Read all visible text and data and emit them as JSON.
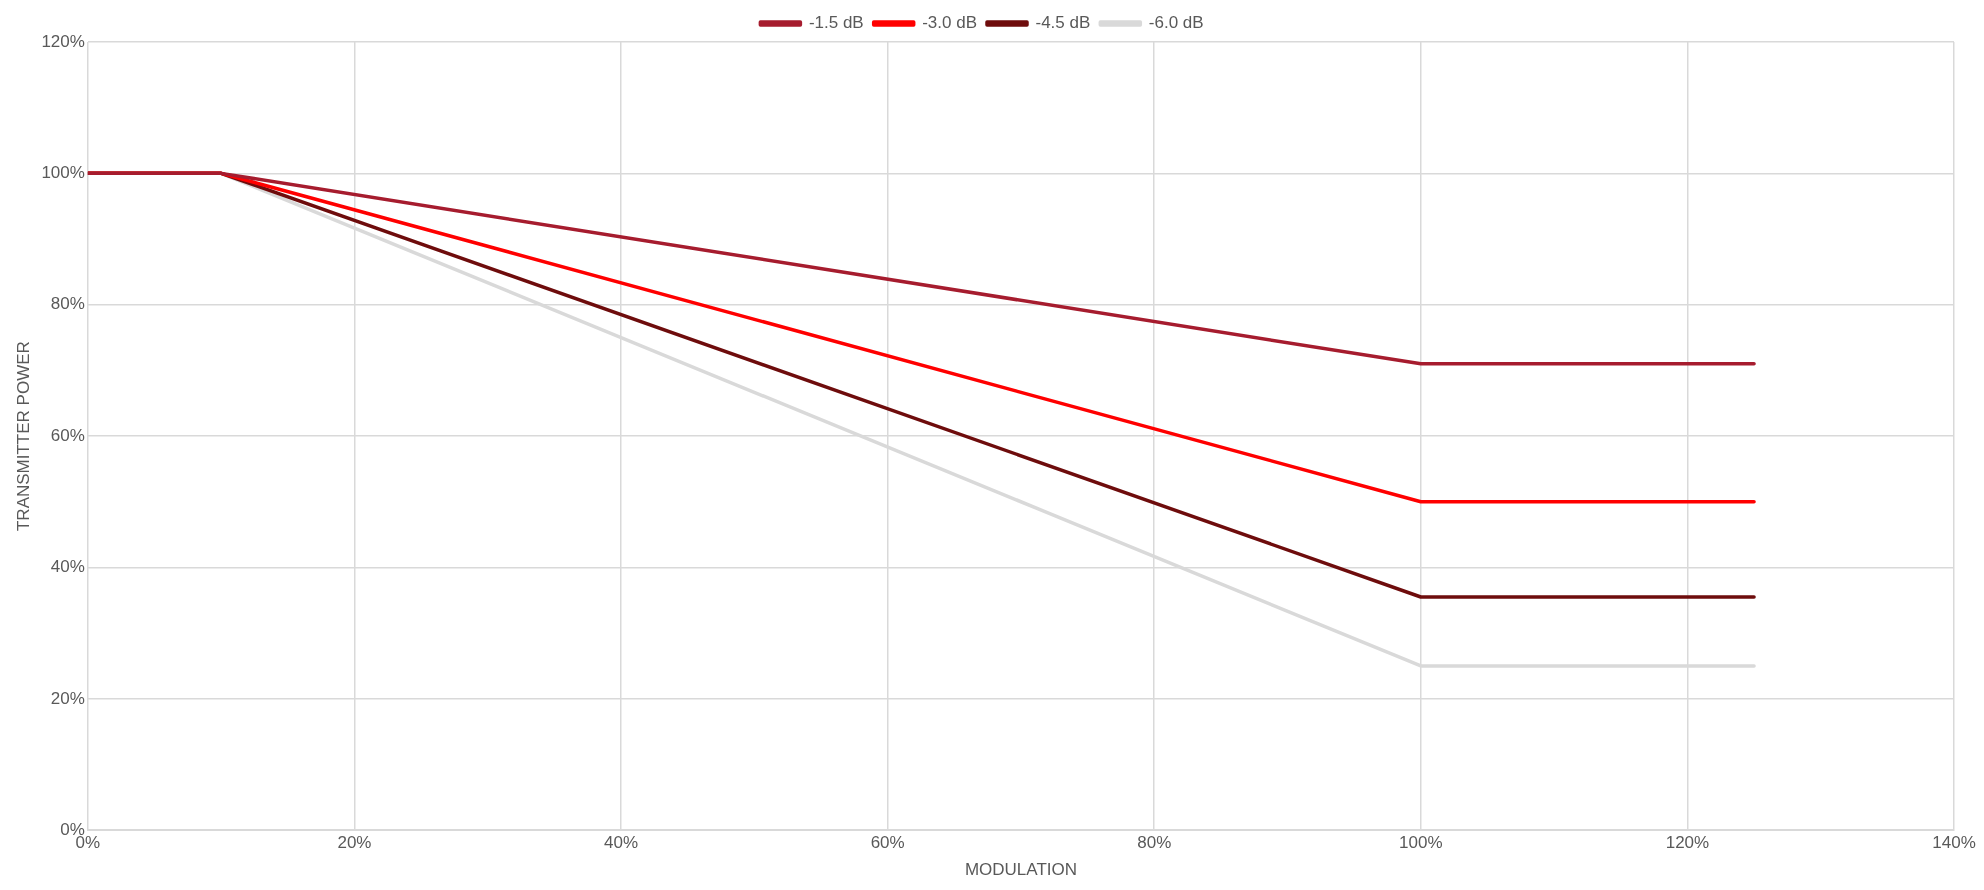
{
  "chart_data": {
    "type": "line",
    "xlabel": "MODULATION",
    "ylabel": "TRANSMITTER POWER",
    "x": [
      0,
      10,
      100,
      125
    ],
    "series": [
      {
        "name": "-1.5 dB",
        "color": "#a61c2e",
        "values": [
          100,
          100,
          71,
          71
        ]
      },
      {
        "name": "-3.0 dB",
        "color": "#ff0000",
        "values": [
          100,
          100,
          50,
          50
        ]
      },
      {
        "name": "-4.5 dB",
        "color": "#6e0c0c",
        "values": [
          100,
          100,
          35.5,
          35.5
        ]
      },
      {
        "name": "-6.0 dB",
        "color": "#d9d9d9",
        "values": [
          100,
          100,
          25,
          25
        ]
      }
    ],
    "xlim": [
      0,
      140
    ],
    "ylim": [
      0,
      120
    ],
    "xticks": [
      {
        "value": 0,
        "label": "0%"
      },
      {
        "value": 20,
        "label": "20%"
      },
      {
        "value": 40,
        "label": "40%"
      },
      {
        "value": 60,
        "label": "60%"
      },
      {
        "value": 80,
        "label": "80%"
      },
      {
        "value": 100,
        "label": "100%"
      },
      {
        "value": 120,
        "label": "120%"
      },
      {
        "value": 140,
        "label": "140%"
      }
    ],
    "yticks": [
      {
        "value": 0,
        "label": "0%"
      },
      {
        "value": 20,
        "label": "20%"
      },
      {
        "value": 40,
        "label": "40%"
      },
      {
        "value": 60,
        "label": "60%"
      },
      {
        "value": 80,
        "label": "80%"
      },
      {
        "value": 100,
        "label": "100%"
      },
      {
        "value": 120,
        "label": "120%"
      }
    ],
    "grid": true,
    "legend": "top",
    "marker": "none",
    "line_style": "solid"
  }
}
